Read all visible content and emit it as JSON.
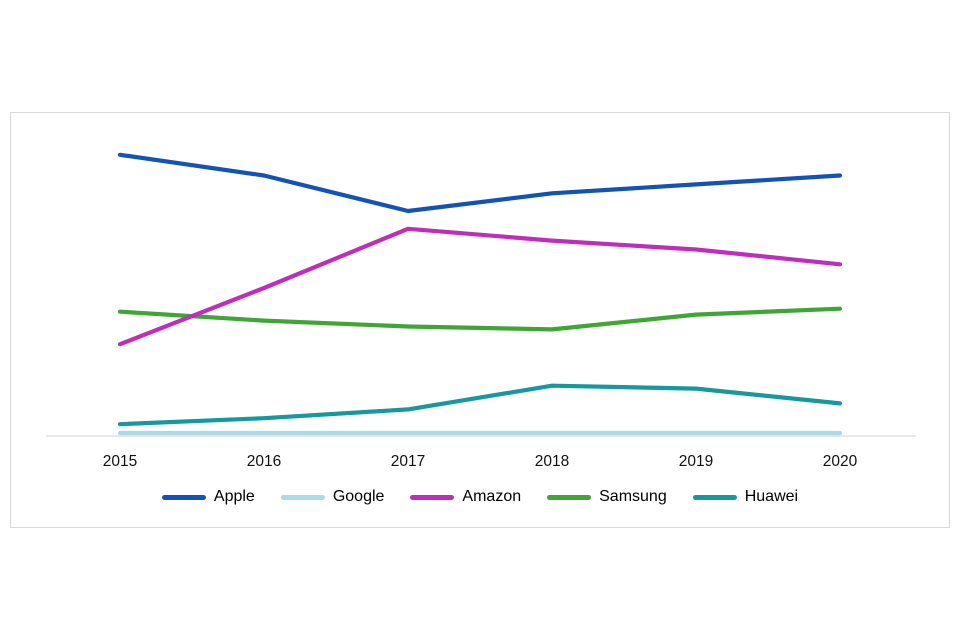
{
  "chart_data": {
    "type": "line",
    "x": [
      "2015",
      "2016",
      "2017",
      "2018",
      "2019",
      "2020"
    ],
    "series": [
      {
        "name": "Apple",
        "color": "#1353b5",
        "values": [
          95,
          88,
          76,
          82,
          85,
          88
        ]
      },
      {
        "name": "Google",
        "color": "#a6dbe8",
        "values": [
          1,
          1,
          1,
          1,
          1,
          1
        ]
      },
      {
        "name": "Amazon",
        "color": "#c02dbc",
        "values": [
          31,
          50,
          70,
          66,
          63,
          58
        ]
      },
      {
        "name": "Samsung",
        "color": "#3fa535",
        "values": [
          42,
          39,
          37,
          36,
          41,
          43
        ]
      },
      {
        "name": "Huawei",
        "color": "#17989f",
        "values": [
          4,
          6,
          9,
          17,
          16,
          11
        ]
      }
    ],
    "title": "",
    "xlabel": "",
    "ylabel": "",
    "ylim": [
      0,
      100
    ],
    "grid": false,
    "legend_position": "bottom",
    "axis_line_color": "#d0d0d0",
    "tick_label_color": "#111111"
  }
}
